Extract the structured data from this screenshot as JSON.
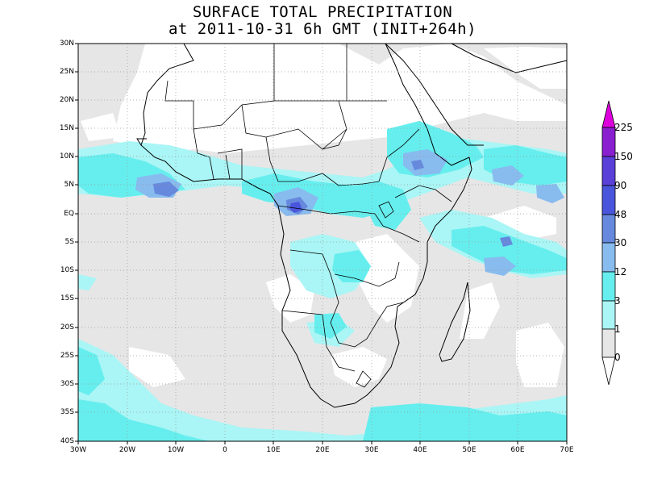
{
  "title_line1": "SURFACE TOTAL PRECIPITATION",
  "title_line2": "at 2011-10-31 6h GMT (INIT+264h)",
  "map": {
    "lon_range": [
      -30,
      70
    ],
    "lat_range": [
      -40,
      30
    ],
    "lat_labels": [
      "30N",
      "25N",
      "20N",
      "15N",
      "10N",
      "5N",
      "EQ",
      "5S",
      "10S",
      "15S",
      "20S",
      "25S",
      "30S",
      "35S",
      "40S"
    ],
    "lon_labels": [
      "30W",
      "20W",
      "10W",
      "0",
      "10E",
      "20E",
      "30E",
      "40E",
      "50E",
      "60E",
      "70E"
    ],
    "grid": "dotted"
  },
  "colorbar": {
    "levels": [
      "225",
      "150",
      "90",
      "48",
      "30",
      "12",
      "3",
      "1",
      "0"
    ],
    "colors": [
      "#dd00dd",
      "#8a1fd0",
      "#5a3fd8",
      "#4a55dd",
      "#6688dd",
      "#88bbee",
      "#66eeee",
      "#aaf5f5",
      "#e6e6e6"
    ]
  }
}
